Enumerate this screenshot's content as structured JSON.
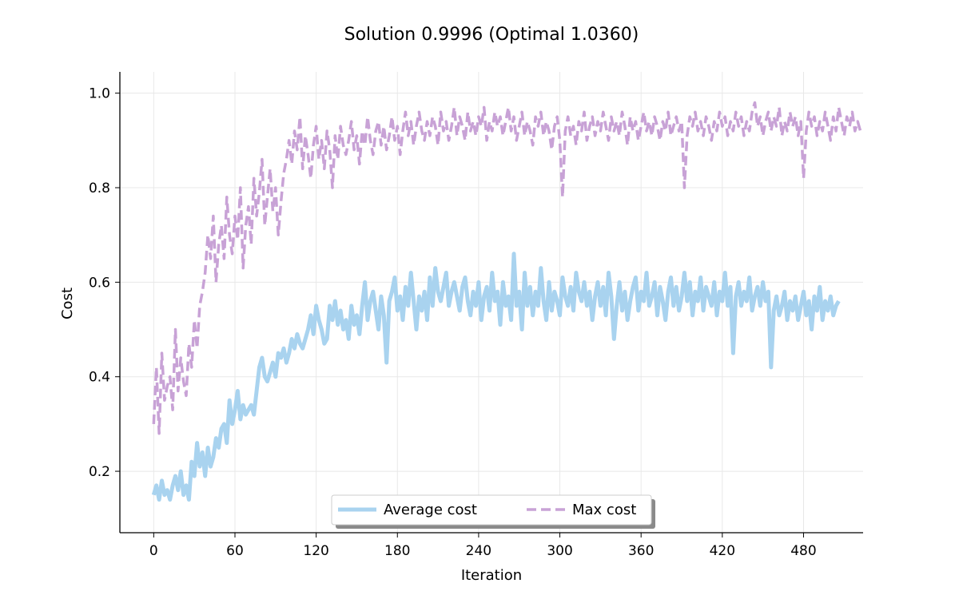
{
  "chart_data": {
    "type": "line",
    "title": "Solution 0.9996 (Optimal 1.0360)",
    "xlabel": "Iteration",
    "ylabel": "Cost",
    "xlim": [
      -25,
      524
    ],
    "ylim": [
      0.07,
      1.045
    ],
    "xticks": [
      0,
      60,
      120,
      180,
      240,
      300,
      360,
      420,
      480
    ],
    "yticks": [
      0.2,
      0.4,
      0.6,
      0.8,
      1.0
    ],
    "ytick_labels": [
      "0.2",
      "0.4",
      "0.6",
      "0.8",
      "1.0"
    ],
    "grid": true,
    "legend_position": "lower-center",
    "x_step": 2,
    "series": [
      {
        "name": "Average cost",
        "color": "#a9d3ef",
        "style": "solid",
        "values": [
          0.15,
          0.17,
          0.14,
          0.18,
          0.15,
          0.16,
          0.14,
          0.17,
          0.19,
          0.16,
          0.2,
          0.15,
          0.17,
          0.14,
          0.22,
          0.19,
          0.26,
          0.21,
          0.24,
          0.19,
          0.25,
          0.21,
          0.23,
          0.27,
          0.25,
          0.29,
          0.3,
          0.26,
          0.35,
          0.3,
          0.33,
          0.37,
          0.31,
          0.34,
          0.32,
          0.33,
          0.34,
          0.32,
          0.37,
          0.42,
          0.44,
          0.4,
          0.39,
          0.41,
          0.43,
          0.4,
          0.45,
          0.44,
          0.46,
          0.43,
          0.45,
          0.48,
          0.46,
          0.49,
          0.47,
          0.46,
          0.48,
          0.5,
          0.53,
          0.49,
          0.55,
          0.52,
          0.5,
          0.47,
          0.48,
          0.55,
          0.52,
          0.56,
          0.51,
          0.54,
          0.5,
          0.52,
          0.48,
          0.55,
          0.51,
          0.53,
          0.49,
          0.55,
          0.6,
          0.52,
          0.56,
          0.58,
          0.54,
          0.5,
          0.57,
          0.53,
          0.43,
          0.56,
          0.58,
          0.61,
          0.54,
          0.57,
          0.52,
          0.59,
          0.55,
          0.62,
          0.56,
          0.5,
          0.57,
          0.54,
          0.58,
          0.52,
          0.61,
          0.55,
          0.63,
          0.58,
          0.56,
          0.59,
          0.62,
          0.55,
          0.58,
          0.6,
          0.57,
          0.54,
          0.59,
          0.61,
          0.56,
          0.53,
          0.58,
          0.55,
          0.6,
          0.52,
          0.57,
          0.59,
          0.54,
          0.62,
          0.56,
          0.58,
          0.51,
          0.6,
          0.55,
          0.57,
          0.52,
          0.66,
          0.55,
          0.58,
          0.5,
          0.62,
          0.55,
          0.59,
          0.53,
          0.58,
          0.55,
          0.63,
          0.56,
          0.52,
          0.6,
          0.54,
          0.58,
          0.56,
          0.53,
          0.61,
          0.57,
          0.55,
          0.59,
          0.54,
          0.62,
          0.58,
          0.56,
          0.6,
          0.55,
          0.58,
          0.52,
          0.57,
          0.6,
          0.55,
          0.59,
          0.53,
          0.62,
          0.57,
          0.48,
          0.55,
          0.6,
          0.54,
          0.58,
          0.52,
          0.56,
          0.59,
          0.61,
          0.54,
          0.58,
          0.56,
          0.62,
          0.55,
          0.57,
          0.6,
          0.53,
          0.59,
          0.56,
          0.52,
          0.58,
          0.61,
          0.55,
          0.59,
          0.54,
          0.57,
          0.62,
          0.56,
          0.6,
          0.53,
          0.58,
          0.56,
          0.61,
          0.54,
          0.59,
          0.57,
          0.55,
          0.6,
          0.53,
          0.58,
          0.56,
          0.62,
          0.55,
          0.59,
          0.45,
          0.57,
          0.6,
          0.55,
          0.58,
          0.56,
          0.61,
          0.54,
          0.57,
          0.59,
          0.55,
          0.6,
          0.56,
          0.58,
          0.42,
          0.54,
          0.57,
          0.53,
          0.55,
          0.58,
          0.52,
          0.56,
          0.54,
          0.57,
          0.52,
          0.55,
          0.58,
          0.53,
          0.56,
          0.5,
          0.57,
          0.54,
          0.59,
          0.52,
          0.56,
          0.54,
          0.57,
          0.53,
          0.55,
          0.56
        ]
      },
      {
        "name": "Max cost",
        "color": "#c8a2d6",
        "style": "dashed",
        "values": [
          0.3,
          0.42,
          0.28,
          0.45,
          0.35,
          0.38,
          0.4,
          0.33,
          0.5,
          0.37,
          0.44,
          0.39,
          0.36,
          0.47,
          0.42,
          0.52,
          0.46,
          0.55,
          0.58,
          0.62,
          0.7,
          0.65,
          0.74,
          0.6,
          0.68,
          0.72,
          0.65,
          0.78,
          0.7,
          0.66,
          0.74,
          0.69,
          0.8,
          0.63,
          0.72,
          0.76,
          0.68,
          0.82,
          0.74,
          0.79,
          0.86,
          0.72,
          0.78,
          0.84,
          0.75,
          0.8,
          0.7,
          0.77,
          0.83,
          0.86,
          0.9,
          0.85,
          0.92,
          0.88,
          0.95,
          0.84,
          0.91,
          0.87,
          0.82,
          0.89,
          0.93,
          0.86,
          0.9,
          0.84,
          0.92,
          0.88,
          0.8,
          0.91,
          0.86,
          0.93,
          0.89,
          0.87,
          0.9,
          0.94,
          0.88,
          0.91,
          0.85,
          0.92,
          0.89,
          0.95,
          0.9,
          0.87,
          0.92,
          0.94,
          0.89,
          0.93,
          0.88,
          0.91,
          0.95,
          0.9,
          0.93,
          0.87,
          0.92,
          0.96,
          0.91,
          0.94,
          0.89,
          0.93,
          0.96,
          0.92,
          0.9,
          0.94,
          0.91,
          0.95,
          0.93,
          0.89,
          0.96,
          0.92,
          0.94,
          0.9,
          0.93,
          0.97,
          0.91,
          0.95,
          0.93,
          0.9,
          0.96,
          0.92,
          0.94,
          0.91,
          0.95,
          0.93,
          0.97,
          0.9,
          0.94,
          0.92,
          0.96,
          0.93,
          0.95,
          0.91,
          0.94,
          0.97,
          0.92,
          0.95,
          0.9,
          0.93,
          0.96,
          0.91,
          0.94,
          0.92,
          0.89,
          0.95,
          0.93,
          0.96,
          0.91,
          0.94,
          0.92,
          0.88,
          0.93,
          0.95,
          0.9,
          0.78,
          0.92,
          0.95,
          0.91,
          0.93,
          0.89,
          0.94,
          0.92,
          0.96,
          0.9,
          0.93,
          0.95,
          0.91,
          0.94,
          0.92,
          0.96,
          0.93,
          0.9,
          0.95,
          0.92,
          0.94,
          0.91,
          0.96,
          0.93,
          0.89,
          0.95,
          0.92,
          0.94,
          0.9,
          0.93,
          0.96,
          0.92,
          0.94,
          0.91,
          0.95,
          0.93,
          0.9,
          0.94,
          0.92,
          0.96,
          0.91,
          0.93,
          0.95,
          0.92,
          0.94,
          0.8,
          0.91,
          0.95,
          0.93,
          0.96,
          0.92,
          0.94,
          0.91,
          0.95,
          0.93,
          0.9,
          0.94,
          0.92,
          0.96,
          0.93,
          0.95,
          0.91,
          0.94,
          0.92,
          0.96,
          0.93,
          0.95,
          0.91,
          0.94,
          0.92,
          0.96,
          0.98,
          0.93,
          0.95,
          0.91,
          0.94,
          0.96,
          0.92,
          0.95,
          0.93,
          0.97,
          0.91,
          0.94,
          0.92,
          0.96,
          0.93,
          0.95,
          0.91,
          0.94,
          0.82,
          0.92,
          0.96,
          0.93,
          0.95,
          0.91,
          0.94,
          0.92,
          0.96,
          0.93,
          0.9,
          0.95,
          0.92,
          0.97,
          0.94,
          0.91,
          0.95,
          0.93,
          0.96,
          0.92,
          0.94,
          0.92
        ]
      }
    ]
  }
}
